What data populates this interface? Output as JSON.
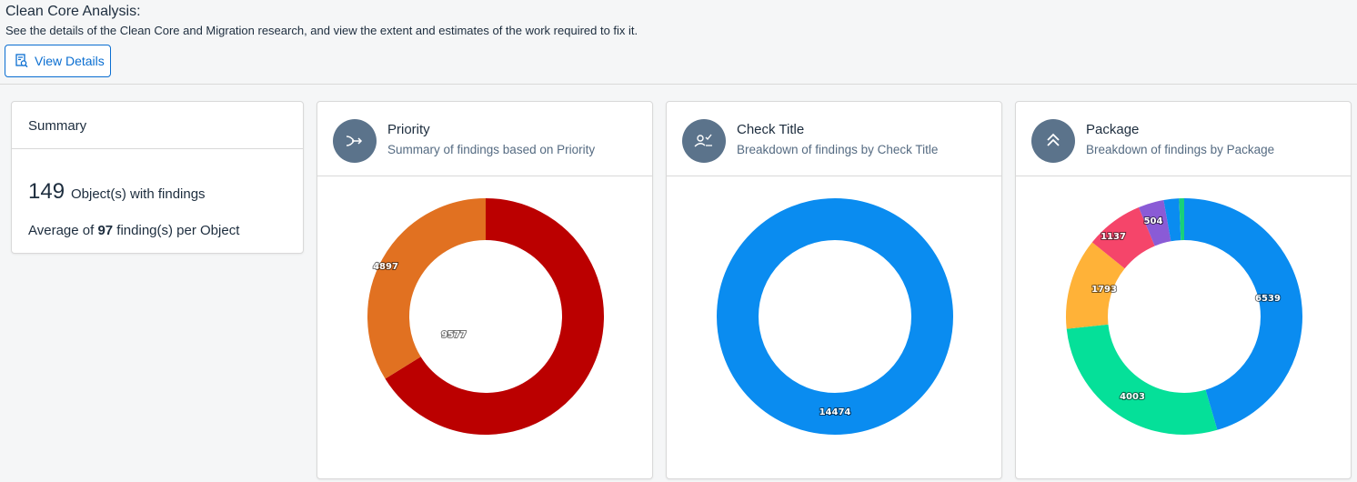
{
  "header": {
    "title": "Clean Core Analysis:",
    "description": "See the details of the Clean Core and Migration research, and view the extent and estimates of the work required to fix it.",
    "view_details_label": "View Details"
  },
  "summary": {
    "title": "Summary",
    "object_count": "149",
    "object_label": "Object(s) with findings",
    "avg_prefix": "Average of ",
    "avg_value": "97",
    "avg_suffix": " finding(s) per Object"
  },
  "cards": {
    "priority": {
      "title": "Priority",
      "subtitle": "Summary of findings based on Priority",
      "icon": "priority-arrow-icon",
      "labels": [
        "9577",
        "4897"
      ]
    },
    "check_title": {
      "title": "Check Title",
      "subtitle": "Breakdown of findings by Check Title",
      "icon": "user-check-icon",
      "labels": [
        "14474"
      ]
    },
    "package": {
      "title": "Package",
      "subtitle": "Breakdown of findings by Package",
      "icon": "double-chevron-up-icon",
      "labels": [
        "6539",
        "4003",
        "1793",
        "1137",
        "504"
      ]
    }
  },
  "chart_data": [
    {
      "type": "pie",
      "variant": "donut",
      "values": [
        9577,
        4897
      ],
      "colors": [
        "#bb0000",
        "#e17121"
      ]
    },
    {
      "type": "pie",
      "variant": "donut",
      "values": [
        14474
      ],
      "colors": [
        "#0a8cf0"
      ]
    },
    {
      "type": "pie",
      "variant": "donut",
      "values": [
        6539,
        4003,
        1793,
        1137,
        504,
        300,
        100
      ],
      "colors": [
        "#0a8cf0",
        "#05e099",
        "#ffb238",
        "#f5456a",
        "#8a5bd6",
        "#0a8cf0",
        "#19d07a"
      ]
    }
  ]
}
